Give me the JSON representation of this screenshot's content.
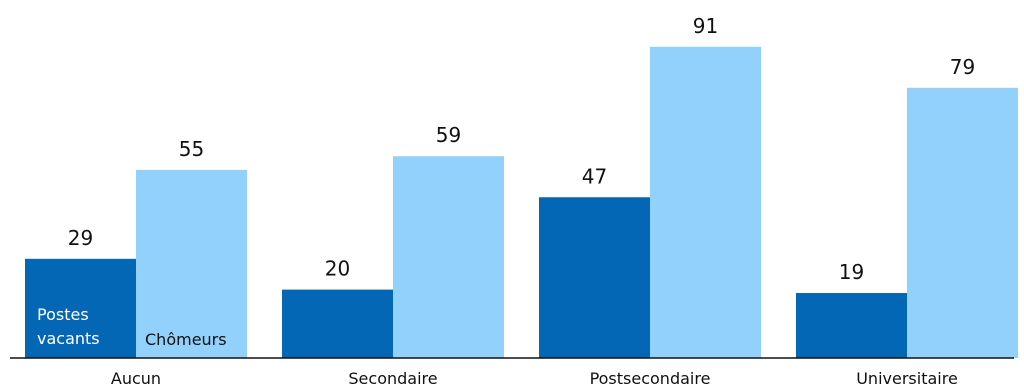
{
  "chart_data": {
    "type": "bar",
    "categories": [
      "Aucun",
      "Secondaire",
      "Postsecondaire",
      "Universitaire"
    ],
    "series": [
      {
        "name": "Postes vacants",
        "values": [
          29,
          20,
          47,
          19
        ],
        "color": "#0467b5"
      },
      {
        "name": "Chômeurs",
        "values": [
          55,
          59,
          91,
          79
        ],
        "color": "#92d1fb"
      }
    ],
    "series_labels_in_bars": {
      "first_series_lines": [
        "Postes",
        "vacants"
      ],
      "second_series_lines": [
        "Chômeurs"
      ]
    },
    "ylim": [
      0,
      100
    ],
    "grid": false,
    "axis_color": "#111111"
  }
}
